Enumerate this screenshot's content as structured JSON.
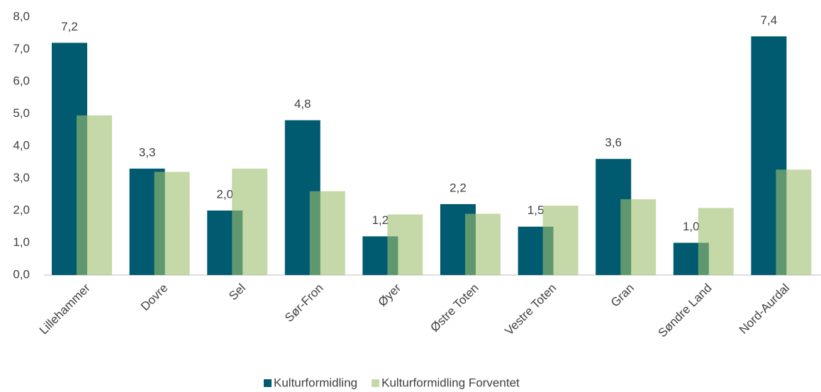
{
  "chart_data": {
    "type": "bar",
    "categories": [
      "Lillehammer",
      "Dovre",
      "Sel",
      "Sør-Fron",
      "Øyer",
      "Østre Toten",
      "Vestre Toten",
      "Gran",
      "Søndre Land",
      "Nord-Aurdal"
    ],
    "series": [
      {
        "name": "Kulturformidling",
        "color": "#005a70",
        "values": [
          7.2,
          3.3,
          2.0,
          4.8,
          1.2,
          2.2,
          1.5,
          3.6,
          1.0,
          7.4
        ],
        "value_labels": [
          "7,2",
          "3,3",
          "2,0",
          "4,8",
          "1,2",
          "2,2",
          "1,5",
          "3,6",
          "1,0",
          "7,4"
        ]
      },
      {
        "name": "Kulturformidling Forventet",
        "color": "#9ec06e",
        "values": [
          4.95,
          3.2,
          3.3,
          2.6,
          1.88,
          1.9,
          2.15,
          2.35,
          2.08,
          3.27
        ]
      }
    ],
    "ylim": [
      0,
      8
    ],
    "yticks": [
      {
        "value": 0,
        "label": "0,0"
      },
      {
        "value": 1,
        "label": "1,0"
      },
      {
        "value": 2,
        "label": "2,0"
      },
      {
        "value": 3,
        "label": "3,0"
      },
      {
        "value": 4,
        "label": "4,0"
      },
      {
        "value": 5,
        "label": "5,0"
      },
      {
        "value": 6,
        "label": "6,0"
      },
      {
        "value": 7,
        "label": "7,0"
      },
      {
        "value": 8,
        "label": "8,0"
      }
    ],
    "grid": false,
    "legend": "bottom"
  }
}
